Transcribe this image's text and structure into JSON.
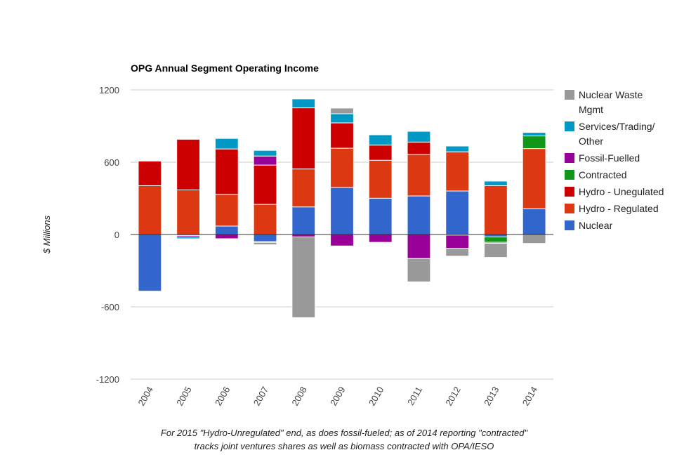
{
  "chart_data": {
    "type": "bar",
    "stacked": true,
    "title": "OPG Annual Segment Operating Income",
    "xlabel": "",
    "ylabel": "$ Millions",
    "ylim": [
      -1200,
      1200
    ],
    "yticks": [
      1200,
      600,
      0,
      -600,
      -1200
    ],
    "grid": true,
    "legend_position": "right",
    "categories": [
      "2004",
      "2005",
      "2006",
      "2007",
      "2008",
      "2009",
      "2010",
      "2011",
      "2012",
      "2013",
      "2014"
    ],
    "series": [
      {
        "name": "Nuclear",
        "color": "#3366cc",
        "values": [
          -470,
          -8,
          70,
          -60,
          229,
          390,
          301,
          320,
          361,
          -20,
          214
        ]
      },
      {
        "name": "Hydro - Regulated",
        "color": "#dc3912",
        "values": [
          405,
          370,
          262,
          250,
          315,
          326,
          315,
          344,
          325,
          405,
          499
        ]
      },
      {
        "name": "Hydro - Unegulated",
        "color": "#cc0000",
        "values": [
          205,
          420,
          378,
          326,
          507,
          210,
          126,
          103,
          0,
          0,
          0
        ]
      },
      {
        "name": "Contracted",
        "color": "#109618",
        "values": [
          0,
          0,
          0,
          -5,
          0,
          0,
          0,
          0,
          -5,
          -45,
          105
        ]
      },
      {
        "name": "Fossil-Fuelled",
        "color": "#990099",
        "values": [
          0,
          -12,
          -35,
          75,
          -20,
          -95,
          -65,
          -200,
          -110,
          -8,
          0
        ]
      },
      {
        "name": "Services/Trading/ Other",
        "color": "#0099c6",
        "values": [
          5,
          -15,
          87,
          47,
          74,
          76,
          86,
          89,
          48,
          38,
          29
        ]
      },
      {
        "name": "Nuclear Waste Mgmt",
        "color": "#999999",
        "values": [
          0,
          0,
          0,
          -20,
          -670,
          47,
          6,
          -193,
          -65,
          -117,
          -74
        ]
      }
    ],
    "legend": [
      {
        "label_lines": [
          "Nuclear Waste",
          "Mgmt"
        ],
        "color": "#999999"
      },
      {
        "label_lines": [
          "Services/Trading/",
          "Other"
        ],
        "color": "#0099c6"
      },
      {
        "label_lines": [
          "Fossil-Fuelled"
        ],
        "color": "#990099"
      },
      {
        "label_lines": [
          "Contracted"
        ],
        "color": "#109618"
      },
      {
        "label_lines": [
          "Hydro - Unegulated"
        ],
        "color": "#cc0000"
      },
      {
        "label_lines": [
          "Hydro - Regulated"
        ],
        "color": "#dc3912"
      },
      {
        "label_lines": [
          "Nuclear"
        ],
        "color": "#3366cc"
      }
    ]
  },
  "footnote": {
    "line1": "For 2015 \"Hydro-Unregulated\" end, as does fossil-fueled; as of 2014 reporting \"contracted\"",
    "line2": "tracks joint ventures shares as well as biomass contracted with OPA/IESO"
  }
}
